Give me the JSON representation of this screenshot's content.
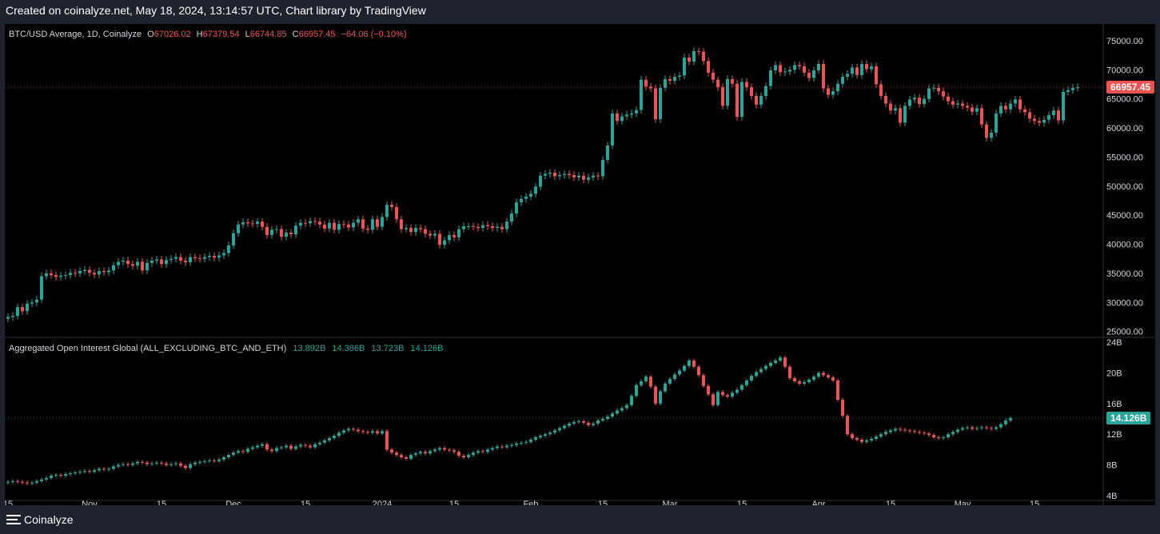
{
  "header": {
    "title": "Created on coinalyze.net, May 18, 2024, 13:14:57 UTC, Chart library by TradingView"
  },
  "footer": {
    "brand": "Coinalyze"
  },
  "price_legend": {
    "symbol": "BTC/USD Average, 1D, Coinalyze",
    "o_label": "O",
    "o": "67026.02",
    "h_label": "H",
    "h": "67379.54",
    "l_label": "L",
    "l": "66744.85",
    "c_label": "C",
    "c": "66957.45",
    "change": "−64.06 (−0.10%)"
  },
  "oi_legend": {
    "title": "Aggregated Open Interest Global (ALL_EXCLUDING_BTC_AND_ETH)",
    "o": "13.892B",
    "h": "14.386B",
    "l": "13.723B",
    "c": "14.126B"
  },
  "price_badge": "66957.45",
  "oi_badge": "14.126B",
  "colors": {
    "up": "#26a69a",
    "down": "#ef5350",
    "background": "#000000",
    "grid": "#2a2e39",
    "text": "#d1d4dc"
  },
  "chart_data": [
    {
      "type": "candlestick",
      "title": "BTC/USD Average, 1D, Coinalyze",
      "ylim": [
        24000,
        76500
      ],
      "y_ticks": [
        "75000.00",
        "70000.00",
        "65000.00",
        "60000.00",
        "55000.00",
        "50000.00",
        "45000.00",
        "40000.00",
        "35000.00",
        "30000.00",
        "25000.00"
      ],
      "y_tick_values": [
        75000,
        70000,
        65000,
        60000,
        55000,
        50000,
        45000,
        40000,
        35000,
        30000,
        25000
      ],
      "x_ticks": [
        "15",
        "Nov",
        "15",
        "Dec",
        "15",
        "2024",
        "15",
        "Feb",
        "15",
        "Mar",
        "15",
        "Apr",
        "15",
        "May",
        "15"
      ],
      "x_tick_index": [
        0,
        17,
        32,
        47,
        62,
        78,
        93,
        109,
        124,
        138,
        153,
        169,
        184,
        199,
        214
      ],
      "close": [
        27500,
        27700,
        29200,
        28500,
        29800,
        30000,
        30500,
        34500,
        35000,
        34700,
        34400,
        34600,
        34700,
        35100,
        35000,
        35400,
        35600,
        35100,
        34800,
        35400,
        35200,
        35500,
        36400,
        37000,
        37200,
        36600,
        36300,
        37000,
        35500,
        36800,
        37200,
        37400,
        36600,
        37300,
        37500,
        37800,
        37200,
        36900,
        37800,
        37600,
        37500,
        37800,
        38000,
        37700,
        38100,
        38500,
        39800,
        41900,
        43400,
        43800,
        43600,
        43500,
        43900,
        43000,
        41600,
        42500,
        42600,
        41300,
        42000,
        41700,
        43200,
        43700,
        43600,
        44000,
        43900,
        43400,
        42700,
        43700,
        42500,
        43500,
        43400,
        42900,
        43700,
        44300,
        42700,
        42500,
        44300,
        43000,
        44700,
        46800,
        46400,
        44300,
        42600,
        42800,
        42100,
        42800,
        42600,
        41800,
        41500,
        41800,
        39900,
        40700,
        41600,
        41200,
        42600,
        43100,
        43100,
        43000,
        42800,
        43300,
        43100,
        42800,
        43000,
        42600,
        43900,
        45300,
        47200,
        47800,
        48200,
        48700,
        49900,
        51800,
        52100,
        52300,
        51700,
        51900,
        52100,
        51900,
        51500,
        51800,
        51100,
        51500,
        51800,
        51700,
        54500,
        57000,
        62500,
        61200,
        62000,
        62300,
        62500,
        63100,
        68300,
        67100,
        66800,
        61500,
        66900,
        68400,
        68100,
        68800,
        69000,
        72100,
        71400,
        73200,
        73100,
        71500,
        69500,
        68300,
        67000,
        63800,
        68400,
        67600,
        61900,
        67900,
        67000,
        65500,
        64000,
        65500,
        67200,
        69900,
        70800,
        69600,
        69700,
        70000,
        70800,
        70600,
        69500,
        68600,
        69900,
        71000,
        66800,
        65700,
        66300,
        67600,
        68800,
        69300,
        70400,
        69100,
        71000,
        70100,
        70600,
        67500,
        65500,
        64200,
        63000,
        63400,
        60900,
        63800,
        64900,
        65200,
        64100,
        65000,
        66800,
        66900,
        66300,
        65400,
        64600,
        64000,
        64200,
        63800,
        63500,
        62800,
        63400,
        60600,
        58300,
        59200,
        62500,
        63800,
        63200,
        64200,
        64900,
        63200,
        62700,
        61600,
        61200,
        60900,
        61400,
        62200,
        63000,
        61300,
        66200,
        66500,
        66900,
        67000
      ],
      "series_open_first": 27200
    },
    {
      "type": "candlestick",
      "title": "Aggregated Open Interest Global (ALL_EXCLUDING_BTC_AND_ETH)",
      "unit": "B",
      "ylim": [
        4,
        24
      ],
      "y_ticks": [
        "24B",
        "20B",
        "16B",
        "12B",
        "8B",
        "4B"
      ],
      "y_tick_values": [
        24,
        20,
        16,
        12,
        8,
        4
      ],
      "close": [
        5.8,
        5.9,
        5.8,
        5.7,
        5.6,
        5.7,
        5.9,
        6.1,
        6.3,
        6.6,
        6.7,
        6.6,
        6.8,
        6.9,
        7.0,
        7.1,
        7.2,
        7.1,
        7.3,
        7.5,
        7.4,
        7.5,
        7.8,
        8.0,
        8.1,
        8.0,
        8.2,
        8.4,
        8.3,
        8.1,
        8.2,
        8.3,
        8.2,
        8.0,
        8.1,
        8.2,
        7.9,
        7.6,
        8.1,
        8.3,
        8.4,
        8.5,
        8.6,
        8.5,
        8.7,
        9.0,
        9.3,
        9.6,
        9.8,
        9.7,
        10.1,
        10.3,
        10.5,
        10.7,
        10.0,
        9.8,
        10.2,
        10.3,
        10.5,
        10.1,
        10.4,
        10.6,
        10.5,
        10.3,
        10.7,
        10.9,
        11.2,
        11.5,
        11.8,
        12.2,
        12.5,
        12.7,
        12.6,
        12.4,
        12.3,
        12.2,
        12.4,
        12.1,
        12.4,
        10.0,
        9.6,
        9.3,
        9.0,
        8.8,
        9.3,
        9.5,
        9.7,
        9.5,
        9.8,
        10.0,
        10.2,
        10.0,
        9.9,
        9.7,
        9.2,
        9.0,
        9.3,
        9.6,
        9.8,
        9.7,
        10.0,
        10.2,
        10.4,
        10.3,
        10.5,
        10.6,
        10.8,
        10.9,
        11.0,
        11.3,
        11.6,
        11.8,
        12.0,
        12.2,
        12.5,
        12.8,
        13.1,
        13.4,
        13.6,
        13.7,
        13.5,
        13.2,
        13.4,
        13.8,
        14.0,
        14.3,
        14.7,
        15.1,
        15.4,
        15.8,
        17.0,
        18.4,
        18.9,
        19.5,
        18.2,
        16.0,
        17.6,
        18.6,
        19.2,
        19.8,
        20.3,
        20.9,
        21.6,
        20.8,
        19.7,
        18.3,
        17.2,
        15.8,
        17.5,
        17.1,
        16.9,
        17.4,
        17.8,
        18.4,
        19.0,
        19.6,
        20.1,
        20.5,
        20.9,
        21.3,
        21.6,
        22.0,
        20.8,
        19.3,
        18.9,
        18.6,
        18.8,
        19.1,
        19.5,
        20.0,
        19.7,
        19.4,
        19.0,
        16.5,
        14.4,
        12.0,
        11.5,
        11.3,
        11.0,
        11.2,
        11.4,
        11.7,
        12.0,
        12.3,
        12.5,
        12.7,
        12.6,
        12.5,
        12.4,
        12.3,
        12.2,
        12.1,
        11.9,
        11.6,
        11.5,
        11.6,
        12.0,
        12.3,
        12.6,
        12.8,
        12.9,
        12.7,
        12.8,
        12.9,
        12.8,
        12.7,
        12.9,
        13.3,
        13.8,
        14.1
      ],
      "series_open_first": 5.7
    }
  ]
}
